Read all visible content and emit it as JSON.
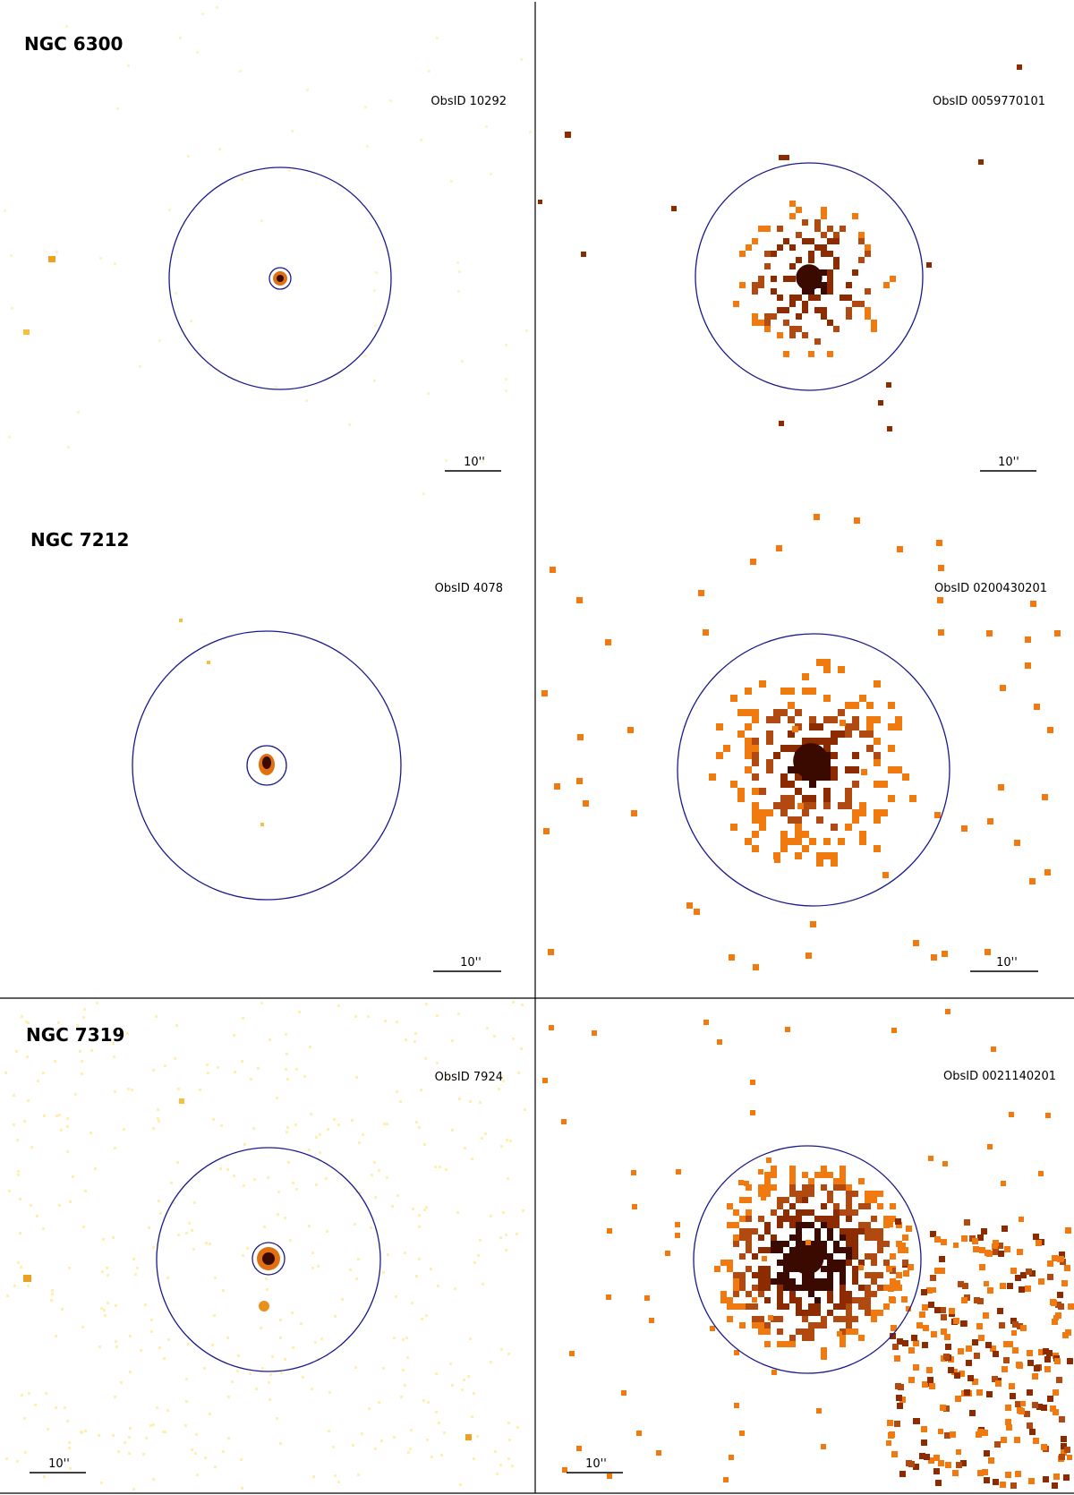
{
  "figure": {
    "rows": [
      {
        "galaxy": "NGC 6300",
        "chandra": {
          "obsid": "ObsID 10292",
          "scale_label": "10''"
        },
        "xmm": {
          "obsid": "ObsID 0059770101",
          "scale_label": "10''"
        }
      },
      {
        "galaxy": "NGC 7212",
        "chandra": {
          "obsid": "ObsID 4078",
          "scale_label": "10''"
        },
        "xmm": {
          "obsid": "ObsID 0200430201",
          "scale_label": "10''"
        }
      },
      {
        "galaxy": "NGC 7319",
        "chandra": {
          "obsid": "ObsID 7924",
          "scale_label": "10''"
        },
        "xmm": {
          "obsid": "ObsID 0021140201",
          "scale_label": "10''"
        }
      }
    ],
    "colors": {
      "extraction_circle": "#1a1a8c",
      "panel_border": "#000000",
      "colormap_dark": "#3a0a00",
      "colormap_mid": "#8c2a00",
      "colormap_light": "#f07a10",
      "colormap_faint": "#ffe9a0"
    }
  }
}
